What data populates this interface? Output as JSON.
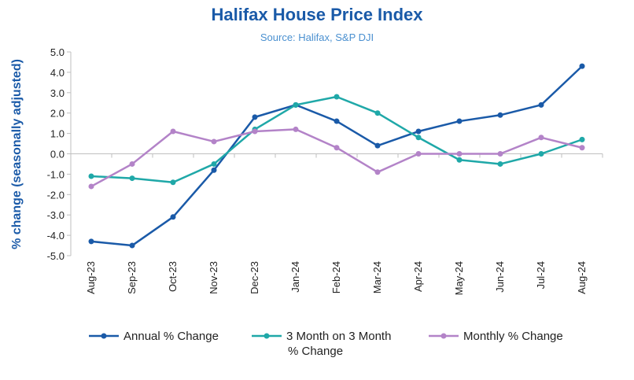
{
  "chart_data": {
    "type": "line",
    "title": "Halifax House Price Index",
    "subtitle": "Source: Halifax,  S&P DJI",
    "ylabel": "% change (seasonally adjusted)",
    "xlabel": "",
    "ylim": [
      -5.0,
      5.0
    ],
    "ytick_step": 1.0,
    "grid": false,
    "legend_position": "bottom",
    "categories": [
      "Aug-23",
      "Sep-23",
      "Oct-23",
      "Nov-23",
      "Dec-23",
      "Jan-24",
      "Feb-24",
      "Mar-24",
      "Apr-24",
      "May-24",
      "Jun-24",
      "Jul-24",
      "Aug-24"
    ],
    "series": [
      {
        "name": "Annual % Change",
        "color": "#1a5aa8",
        "values": [
          -4.3,
          -4.5,
          -3.1,
          -0.8,
          1.8,
          2.4,
          1.6,
          0.4,
          1.1,
          1.6,
          1.9,
          2.4,
          4.3
        ]
      },
      {
        "name": "3 Month on 3 Month % Change",
        "name_lines": [
          "3 Month on 3 Month",
          "% Change"
        ],
        "color": "#1fa8a8",
        "values": [
          -1.1,
          -1.2,
          -1.4,
          -0.5,
          1.2,
          2.4,
          2.8,
          2.0,
          0.8,
          -0.3,
          -0.5,
          0.0,
          0.7
        ]
      },
      {
        "name": "Monthly % Change",
        "color": "#b383c8",
        "values": [
          -1.6,
          -0.5,
          1.1,
          0.6,
          1.1,
          1.2,
          0.3,
          -0.9,
          0.0,
          0.0,
          0.0,
          0.8,
          0.3
        ]
      }
    ],
    "ytick_labels": [
      "5.0",
      "4.0",
      "3.0",
      "2.0",
      "1.0",
      "0.0",
      "-1.0",
      "-2.0",
      "-3.0",
      "-4.0",
      "-5.0"
    ]
  }
}
